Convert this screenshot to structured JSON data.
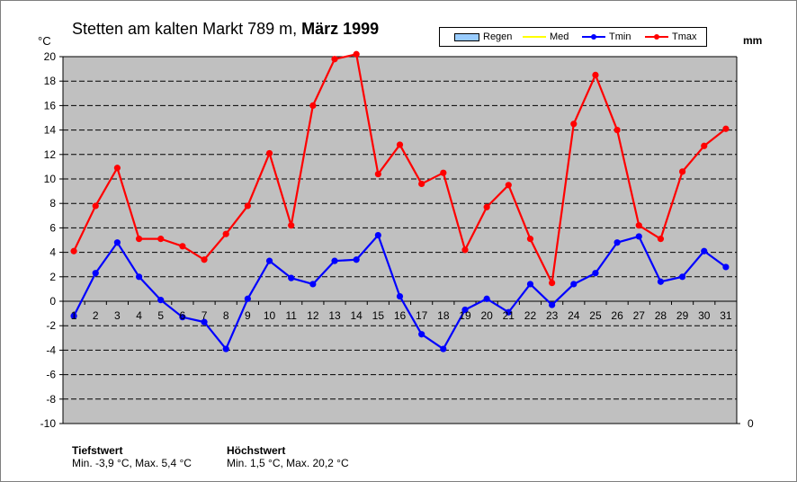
{
  "title": {
    "station": "Stetten am kalten Markt  789 m,",
    "period": "März 1999"
  },
  "units": {
    "left": "°C",
    "right": "mm"
  },
  "legend": [
    {
      "name": "Regen",
      "color": "#99ccff",
      "kind": "bar"
    },
    {
      "name": "Med",
      "color": "#ffff00",
      "kind": "line"
    },
    {
      "name": "Tmin",
      "color": "#0000ff",
      "kind": "line"
    },
    {
      "name": "Tmax",
      "color": "#ff0000",
      "kind": "line"
    }
  ],
  "footer": {
    "min_heading": "Tiefstwert",
    "min_text": "Min. -3,9 °C, Max. 5,4 °C",
    "max_heading": "Höchstwert",
    "max_text": "Min. 1,5 °C,  Max. 20,2 °C"
  },
  "chart_data": {
    "type": "line",
    "title": "Stetten am kalten Markt  789 m, März 1999",
    "x": [
      1,
      2,
      3,
      4,
      5,
      6,
      7,
      8,
      9,
      10,
      11,
      12,
      13,
      14,
      15,
      16,
      17,
      18,
      19,
      20,
      21,
      22,
      23,
      24,
      25,
      26,
      27,
      28,
      29,
      30,
      31
    ],
    "ylim": [
      -10,
      20
    ],
    "yticks": [
      -10,
      -8,
      -6,
      -4,
      -2,
      0,
      2,
      4,
      6,
      8,
      10,
      12,
      14,
      16,
      18,
      20
    ],
    "y2_ticks": [
      0
    ],
    "grid": true,
    "plot_background": "#c0c0c0",
    "legend_position": "top-right",
    "series": [
      {
        "name": "Tmin",
        "color": "#0000ff",
        "values": [
          -1.2,
          2.3,
          4.8,
          2.0,
          0.1,
          -1.3,
          -1.7,
          -3.9,
          0.2,
          3.3,
          1.9,
          1.4,
          3.3,
          3.4,
          5.4,
          0.4,
          -2.7,
          -3.9,
          -0.7,
          0.2,
          -0.9,
          1.4,
          -0.3,
          1.4,
          2.3,
          4.8,
          5.3,
          1.6,
          2.0,
          4.1,
          2.8
        ]
      },
      {
        "name": "Tmax",
        "color": "#ff0000",
        "values": [
          4.1,
          7.8,
          10.9,
          5.1,
          5.1,
          4.5,
          3.4,
          5.5,
          7.8,
          12.1,
          6.2,
          16.0,
          19.8,
          20.2,
          10.4,
          12.8,
          9.6,
          10.5,
          4.2,
          7.7,
          9.5,
          5.1,
          1.5,
          14.5,
          18.5,
          14.0,
          6.2,
          5.1,
          10.6,
          12.7,
          14.1
        ]
      }
    ]
  }
}
